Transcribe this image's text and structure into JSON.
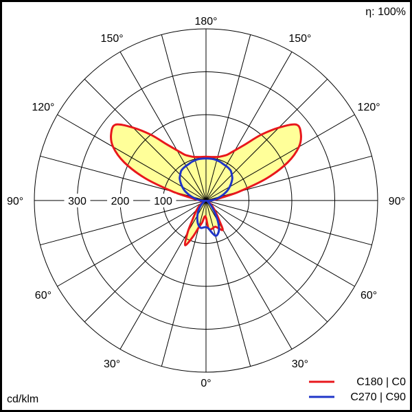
{
  "chart_data": {
    "type": "polar",
    "efficiency_label": "η: 100%",
    "unit_label": "cd/klm",
    "radial_max": 400,
    "radial_ticks": [
      100,
      200,
      300
    ],
    "radial_tick_labels": [
      "100",
      "200",
      "300"
    ],
    "angle_spokes_deg": [
      0,
      15,
      30,
      45,
      60,
      75,
      90,
      105,
      120,
      135,
      150,
      165,
      180
    ],
    "angle_labels": [
      {
        "angle": 180,
        "side": "top",
        "text": "180°"
      },
      {
        "angle": 150,
        "side": "left",
        "text": "150°"
      },
      {
        "angle": 150,
        "side": "right",
        "text": "150°"
      },
      {
        "angle": 120,
        "side": "left",
        "text": "120°"
      },
      {
        "angle": 120,
        "side": "right",
        "text": "120°"
      },
      {
        "angle": 90,
        "side": "left",
        "text": "90°"
      },
      {
        "angle": 90,
        "side": "right",
        "text": "90°"
      },
      {
        "angle": 60,
        "side": "left",
        "text": "60°"
      },
      {
        "angle": 60,
        "side": "right",
        "text": "60°"
      },
      {
        "angle": 30,
        "side": "left",
        "text": "30°"
      },
      {
        "angle": 30,
        "side": "right",
        "text": "30°"
      },
      {
        "angle": 0,
        "side": "bottom",
        "text": "0°"
      }
    ],
    "series": [
      {
        "name": "C180 | C0",
        "color": "#e8171c",
        "fill": "#ffff99",
        "gamma_deg": [
          0,
          5,
          10,
          15,
          20,
          25,
          30,
          35,
          40,
          45,
          50,
          55,
          60,
          65,
          70,
          75,
          80,
          85,
          90,
          95,
          100,
          105,
          110,
          115,
          120,
          125,
          130,
          135,
          140,
          145,
          150,
          155,
          160,
          165,
          170,
          175,
          180
        ],
        "left_cd_klm": [
          40,
          38,
          52,
          65,
          90,
          115,
          85,
          55,
          40,
          30,
          22,
          14,
          8,
          4,
          2,
          3,
          5,
          8,
          12,
          20,
          35,
          80,
          150,
          210,
          250,
          270,
          275,
          240,
          200,
          160,
          135,
          118,
          110,
          105,
          103,
          102,
          102
        ],
        "right_cd_klm": [
          40,
          65,
          68,
          66,
          65,
          72,
          78,
          50,
          35,
          25,
          18,
          12,
          7,
          4,
          2,
          3,
          5,
          8,
          12,
          20,
          35,
          80,
          150,
          210,
          250,
          270,
          275,
          240,
          200,
          160,
          135,
          118,
          110,
          105,
          103,
          102,
          102
        ]
      },
      {
        "name": "C270 | C90",
        "color": "#1f35c8",
        "gamma_deg": [
          0,
          5,
          10,
          15,
          20,
          25,
          30,
          35,
          40,
          45,
          50,
          55,
          60,
          65,
          70,
          75,
          80,
          85,
          90,
          95,
          100,
          105,
          110,
          115,
          120,
          125,
          130,
          135,
          140,
          145,
          150,
          155,
          160,
          165,
          170,
          175,
          180
        ],
        "left_cd_klm": [
          62,
          63,
          65,
          62,
          56,
          48,
          40,
          32,
          25,
          18,
          12,
          8,
          5,
          3,
          2,
          3,
          5,
          8,
          12,
          18,
          25,
          35,
          45,
          55,
          64,
          72,
          80,
          85,
          90,
          92,
          93,
          94,
          96,
          97,
          98,
          98,
          98
        ],
        "right_cd_klm": [
          62,
          65,
          75,
          85,
          82,
          72,
          55,
          38,
          25,
          17,
          11,
          7,
          4,
          3,
          2,
          3,
          5,
          8,
          12,
          18,
          25,
          35,
          45,
          55,
          64,
          72,
          80,
          85,
          90,
          92,
          93,
          94,
          96,
          97,
          98,
          98,
          98
        ]
      }
    ],
    "legend_position": "bottom-right",
    "grid": true
  }
}
